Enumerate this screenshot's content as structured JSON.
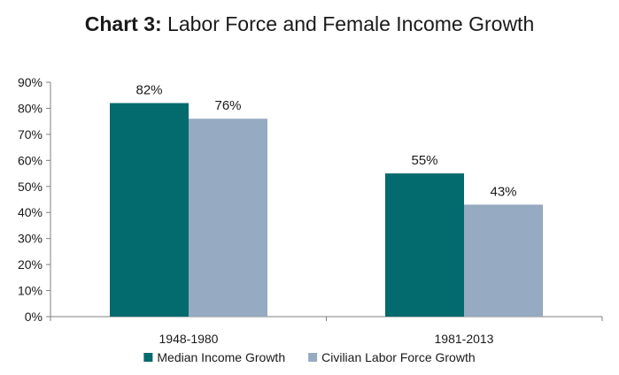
{
  "chart_data": {
    "type": "bar",
    "title_prefix": "Chart 3:",
    "title_main": "Labor Force and Female Income Growth",
    "categories": [
      "1948-1980",
      "1981-2013"
    ],
    "series": [
      {
        "name": "Median Income Growth",
        "color": "#036a6e",
        "values": [
          82,
          55
        ],
        "labels": [
          "82%",
          "55%"
        ]
      },
      {
        "name": "Civilian Labor Force Growth",
        "color": "#96aac1",
        "values": [
          76,
          43
        ],
        "labels": [
          "76%",
          "43%"
        ]
      }
    ],
    "y_ticks": [
      "0%",
      "10%",
      "20%",
      "30%",
      "40%",
      "50%",
      "60%",
      "70%",
      "80%",
      "90%"
    ],
    "ylim": [
      0,
      90
    ],
    "xlabel": "",
    "ylabel": "",
    "grid": false,
    "legend_position": "bottom"
  }
}
